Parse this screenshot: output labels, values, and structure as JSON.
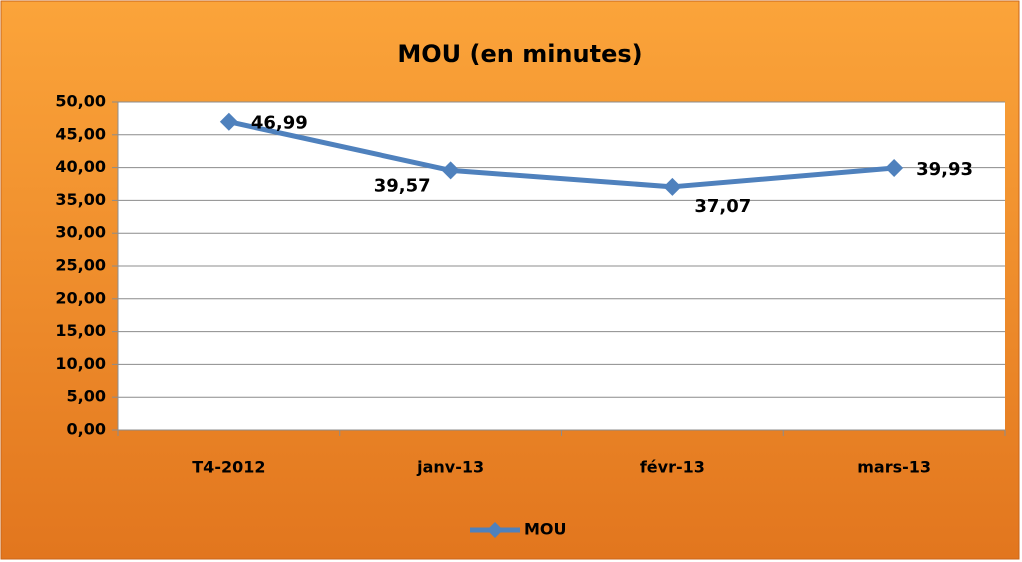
{
  "chart_data": {
    "type": "line",
    "title": "MOU (en minutes)",
    "categories": [
      "T4-2012",
      "janv-13",
      "févr-13",
      "mars-13"
    ],
    "series": [
      {
        "name": "MOU",
        "color": "#4f81bd",
        "values": [
          46.99,
          39.57,
          37.07,
          39.93
        ],
        "value_labels": [
          "46,99",
          "39,57",
          "37,07",
          "39,93"
        ]
      }
    ],
    "ylim": [
      0,
      50
    ],
    "yticks": [
      {
        "value": 0,
        "label": "0,00"
      },
      {
        "value": 5,
        "label": "5,00"
      },
      {
        "value": 10,
        "label": "10,00"
      },
      {
        "value": 15,
        "label": "15,00"
      },
      {
        "value": 20,
        "label": "20,00"
      },
      {
        "value": 25,
        "label": "25,00"
      },
      {
        "value": 30,
        "label": "30,00"
      },
      {
        "value": 35,
        "label": "35,00"
      },
      {
        "value": 40,
        "label": "40,00"
      },
      {
        "value": 45,
        "label": "45,00"
      },
      {
        "value": 50,
        "label": "50,00"
      }
    ],
    "grid": true,
    "legend": "bottom"
  }
}
